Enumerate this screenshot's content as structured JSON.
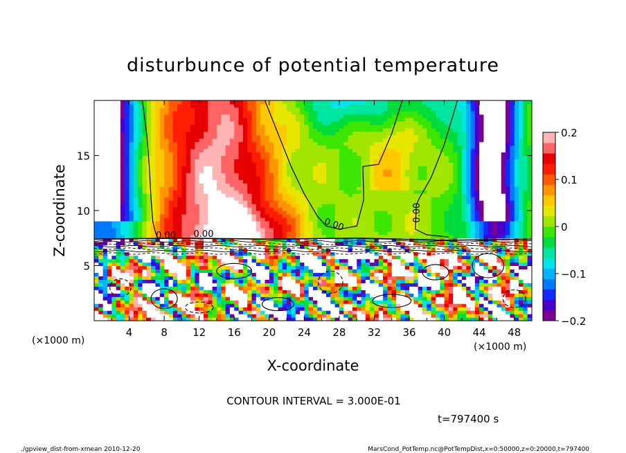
{
  "chart_data": {
    "type": "heatmap",
    "title": "disturbunce of potential temperature",
    "xlabel": "X-coordinate",
    "ylabel": "Z-coordinate",
    "x_unit_left": "(×1000 m)",
    "x_unit_right": "(×1000 m)",
    "z_unit_left": "(×1000 m)",
    "xlim": [
      0,
      50
    ],
    "ylim": [
      0,
      20
    ],
    "x_ticks": [
      4,
      8,
      12,
      16,
      20,
      24,
      28,
      32,
      36,
      40,
      44,
      48
    ],
    "y_ticks": [
      5,
      10,
      15
    ],
    "colorbar": {
      "range": [
        -0.2,
        0.2
      ],
      "ticks": [
        0.2,
        0.1,
        0,
        -0.1,
        -0.2
      ],
      "tick_labels": [
        "0.2",
        "0.1",
        "0",
        "−0.1",
        "−0.2"
      ]
    },
    "contour_labels": [
      "0.00",
      "0.00",
      "0.00",
      "0.00"
    ],
    "contour_interval_text": "CONTOUR INTERVAL = 3.000E-01",
    "time_text": "t=797400 s"
  },
  "footer": {
    "left": "./gpview_dist-from-xmean  2010-12-20",
    "right": "MarsCond_PotTemp.nc@PotTempDist,x=0:50000,z=0:20000,t=797400"
  },
  "palette": [
    "#7b0090",
    "#4b00c8",
    "#1428ff",
    "#0078ff",
    "#00b4ff",
    "#00e6e6",
    "#00e6a0",
    "#00dc3c",
    "#3ce600",
    "#a0e600",
    "#e6e600",
    "#ffc800",
    "#ff9600",
    "#ff5a00",
    "#ff1e00",
    "#e60000",
    "#ff6464",
    "#ffb4b4"
  ]
}
